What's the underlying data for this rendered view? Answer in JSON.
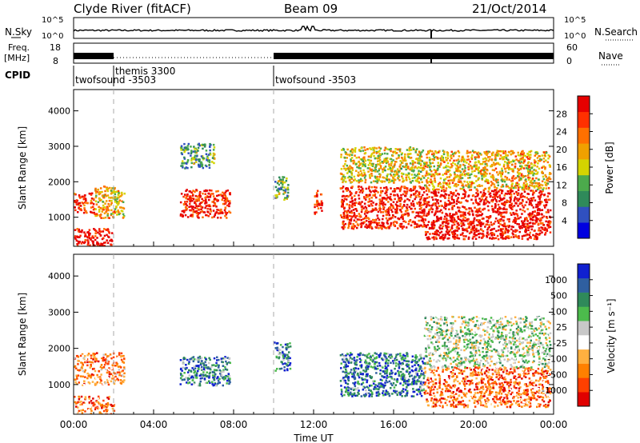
{
  "header": {
    "station": "Clyde River (fitACF)",
    "beam": "Beam 09",
    "date": "21/Oct/2014"
  },
  "strip_labels": {
    "nsky": "N.Sky",
    "freq_line1": "Freq.",
    "freq_line2": "[MHz]",
    "cpid": "CPID",
    "nsearch": "N.Search",
    "nave": "Nave",
    "nsky_ticks": [
      "10^5",
      "10^0"
    ],
    "nsearch_ticks": [
      "10^5",
      "10^0"
    ],
    "freq_ticks": [
      "18",
      "8"
    ],
    "nave_ticks": [
      "60",
      "0"
    ]
  },
  "cpid_segments": [
    {
      "label": "twofsound -3503",
      "start_hour": 0.0
    },
    {
      "label": "themis 3300",
      "start_hour": 2.0
    },
    {
      "label": "twofsound -3503",
      "start_hour": 10.0
    }
  ],
  "chart_data": [
    {
      "type": "heatmap",
      "title": "",
      "xlabel": "",
      "ylabel": "Slant Range [km]",
      "x_range_hours": [
        0,
        24
      ],
      "y_range_km": [
        180,
        4600
      ],
      "y_ticks": [
        1000,
        2000,
        3000,
        4000
      ],
      "colorbar": {
        "label": "Power [dB]",
        "tick_labels": [
          "28",
          "24",
          "20",
          "16",
          "12",
          "8",
          "4"
        ],
        "colors": [
          "#0000e0",
          "#3050c0",
          "#2f8a5a",
          "#4caa4c",
          "#d4d400",
          "#f0a000",
          "#ff7000",
          "#ff3000",
          "#e60000"
        ]
      },
      "scatter_regions": [
        {
          "start_hour": 0.0,
          "end_hour": 1.0,
          "range_min_km": 1150,
          "range_max_km": 1700,
          "level": 0.85
        },
        {
          "start_hour": 0.0,
          "end_hour": 1.9,
          "range_min_km": 200,
          "range_max_km": 700,
          "level": 0.95
        },
        {
          "start_hour": 1.0,
          "end_hour": 2.5,
          "range_min_km": 1000,
          "range_max_km": 1900,
          "level": 0.6
        },
        {
          "start_hour": 5.3,
          "end_hour": 7.8,
          "range_min_km": 1000,
          "range_max_km": 1800,
          "level": 0.9
        },
        {
          "start_hour": 5.3,
          "end_hour": 7.0,
          "range_min_km": 2400,
          "range_max_km": 3100,
          "level": 0.35
        },
        {
          "start_hour": 10.0,
          "end_hour": 10.7,
          "range_min_km": 1500,
          "range_max_km": 2200,
          "level": 0.4
        },
        {
          "start_hour": 12.0,
          "end_hour": 12.4,
          "range_min_km": 1100,
          "range_max_km": 1800,
          "level": 0.85
        },
        {
          "start_hour": 13.3,
          "end_hour": 17.5,
          "range_min_km": 700,
          "range_max_km": 1900,
          "level": 0.9
        },
        {
          "start_hour": 13.3,
          "end_hour": 17.5,
          "range_min_km": 2000,
          "range_max_km": 3000,
          "level": 0.55
        },
        {
          "start_hour": 17.5,
          "end_hour": 23.8,
          "range_min_km": 400,
          "range_max_km": 1800,
          "level": 0.95
        },
        {
          "start_hour": 17.5,
          "end_hour": 23.8,
          "range_min_km": 1800,
          "range_max_km": 2900,
          "level": 0.6
        }
      ]
    },
    {
      "type": "heatmap",
      "title": "",
      "xlabel": "Time UT",
      "ylabel": "Slant Range [km]",
      "x_range_hours": [
        0,
        24
      ],
      "x_tick_labels": [
        "00:00",
        "04:00",
        "08:00",
        "12:00",
        "16:00",
        "20:00",
        "00:00"
      ],
      "y_range_km": [
        180,
        4600
      ],
      "y_ticks": [
        1000,
        2000,
        3000,
        4000
      ],
      "colorbar": {
        "label": "Velocity [m s⁻¹]",
        "tick_labels": [
          "1000",
          "500",
          "100",
          "25",
          "-25",
          "-100",
          "-500",
          "-1000"
        ],
        "colors": [
          "#e00000",
          "#ff4000",
          "#ff8000",
          "#ffb040",
          "#ffffff",
          "#c8c8c8",
          "#4cbb4c",
          "#2f8a5a",
          "#2f5fa0",
          "#1020d0"
        ]
      },
      "scatter_regions": [
        {
          "start_hour": 0.0,
          "end_hour": 2.0,
          "range_min_km": 200,
          "range_max_km": 700,
          "level": 0.25
        },
        {
          "start_hour": 0.0,
          "end_hour": 2.5,
          "range_min_km": 1000,
          "range_max_km": 1900,
          "level": 0.3
        },
        {
          "start_hour": 5.3,
          "end_hour": 7.8,
          "range_min_km": 1000,
          "range_max_km": 1800,
          "level": 0.75
        },
        {
          "start_hour": 10.0,
          "end_hour": 10.8,
          "range_min_km": 1400,
          "range_max_km": 2200,
          "level": 0.75
        },
        {
          "start_hour": 13.3,
          "end_hour": 17.5,
          "range_min_km": 700,
          "range_max_km": 1900,
          "level": 0.8
        },
        {
          "start_hour": 17.5,
          "end_hour": 23.8,
          "range_min_km": 400,
          "range_max_km": 1500,
          "level": 0.22
        },
        {
          "start_hour": 17.5,
          "end_hour": 23.8,
          "range_min_km": 1500,
          "range_max_km": 2900,
          "level": 0.55
        }
      ]
    }
  ]
}
